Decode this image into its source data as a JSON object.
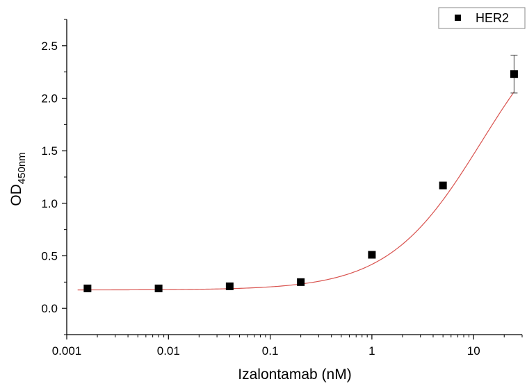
{
  "chart_data": {
    "type": "scatter",
    "xlabel": "Izalontamab (nM)",
    "ylabel": {
      "main": "OD",
      "sub": "450nm"
    },
    "x_scale": "log",
    "xlim": [
      0.001,
      30
    ],
    "ylim": [
      -0.25,
      2.75
    ],
    "x_ticks": [
      0.001,
      0.01,
      0.1,
      1,
      10
    ],
    "x_tick_labels": [
      "0.001",
      "0.01",
      "0.1",
      "1",
      "10"
    ],
    "y_ticks": [
      0.0,
      0.5,
      1.0,
      1.5,
      2.0,
      2.5
    ],
    "y_tick_labels": [
      "0.0",
      "0.5",
      "1.0",
      "1.5",
      "2.0",
      "2.5"
    ],
    "legend": {
      "position": "top-right",
      "entries": [
        "HER2"
      ]
    },
    "grid": false,
    "series": [
      {
        "name": "HER2",
        "marker": "square",
        "color": "#000000",
        "x": [
          0.0016,
          0.008,
          0.04,
          0.2,
          1,
          5,
          25
        ],
        "y": [
          0.19,
          0.19,
          0.21,
          0.25,
          0.51,
          1.17,
          2.23
        ],
        "y_error": [
          0,
          0,
          0,
          0,
          0,
          0,
          0.18
        ]
      }
    ],
    "fit_curve": {
      "color": "#d9534f",
      "bottom": 0.175,
      "top": 3.0,
      "ec50": 12,
      "hill": 0.95
    }
  }
}
